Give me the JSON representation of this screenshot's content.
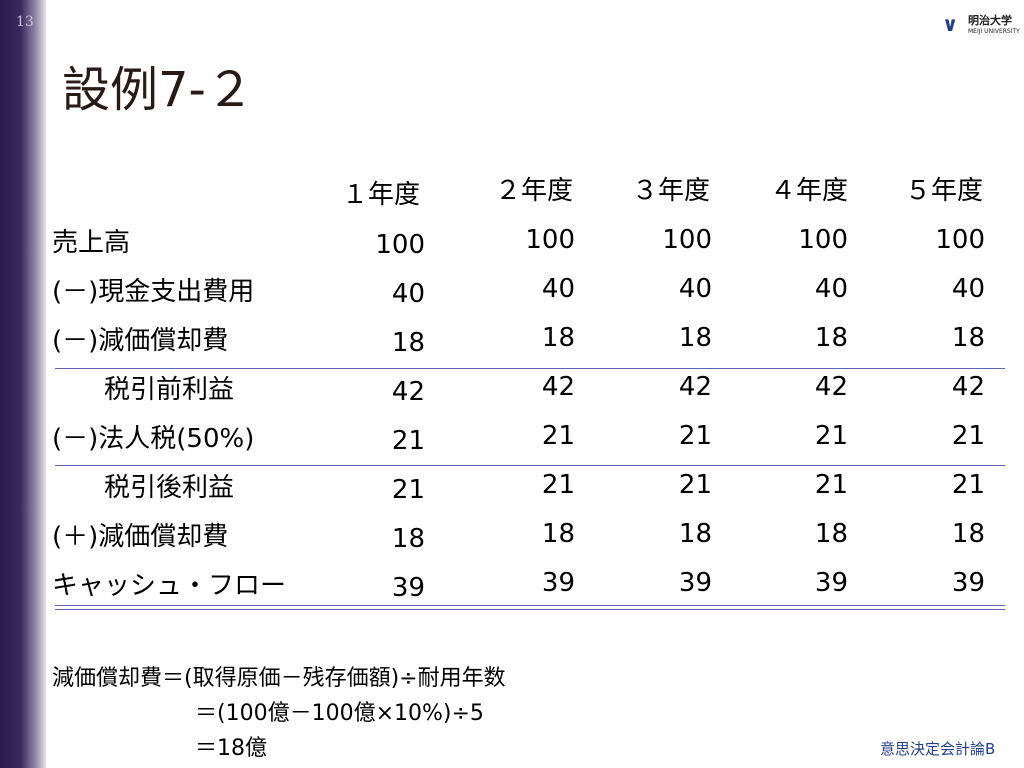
{
  "page_number": "13",
  "logo": {
    "name": "明治大学",
    "subtitle": "MEIJI UNIVERSITY"
  },
  "title": "設例7-２",
  "table": {
    "columns": [
      "１年度",
      "２年度",
      "３年度",
      "４年度",
      "５年度"
    ],
    "rows": [
      {
        "label": "売上高",
        "values": [
          100,
          100,
          100,
          100,
          100
        ]
      },
      {
        "label": "(－)現金支出費用",
        "values": [
          40,
          40,
          40,
          40,
          40
        ]
      },
      {
        "label": "(－)減価償却費",
        "values": [
          18,
          18,
          18,
          18,
          18
        ]
      },
      {
        "label": "　　税引前利益",
        "values": [
          42,
          42,
          42,
          42,
          42
        ]
      },
      {
        "label": "(－)法人税(50%)",
        "values": [
          21,
          21,
          21,
          21,
          21
        ]
      },
      {
        "label": "　　税引後利益",
        "values": [
          21,
          21,
          21,
          21,
          21
        ]
      },
      {
        "label": "(＋)減価償却費",
        "values": [
          18,
          18,
          18,
          18,
          18
        ]
      },
      {
        "label": "キャッシュ・フロー",
        "values": [
          39,
          39,
          39,
          39,
          39
        ]
      }
    ]
  },
  "notes": [
    "減価償却費＝(取得原価－残存価額)÷耐用年数",
    "＝(100億－100億×10%)÷5",
    "＝18億"
  ],
  "footer": "意思決定会計論B"
}
